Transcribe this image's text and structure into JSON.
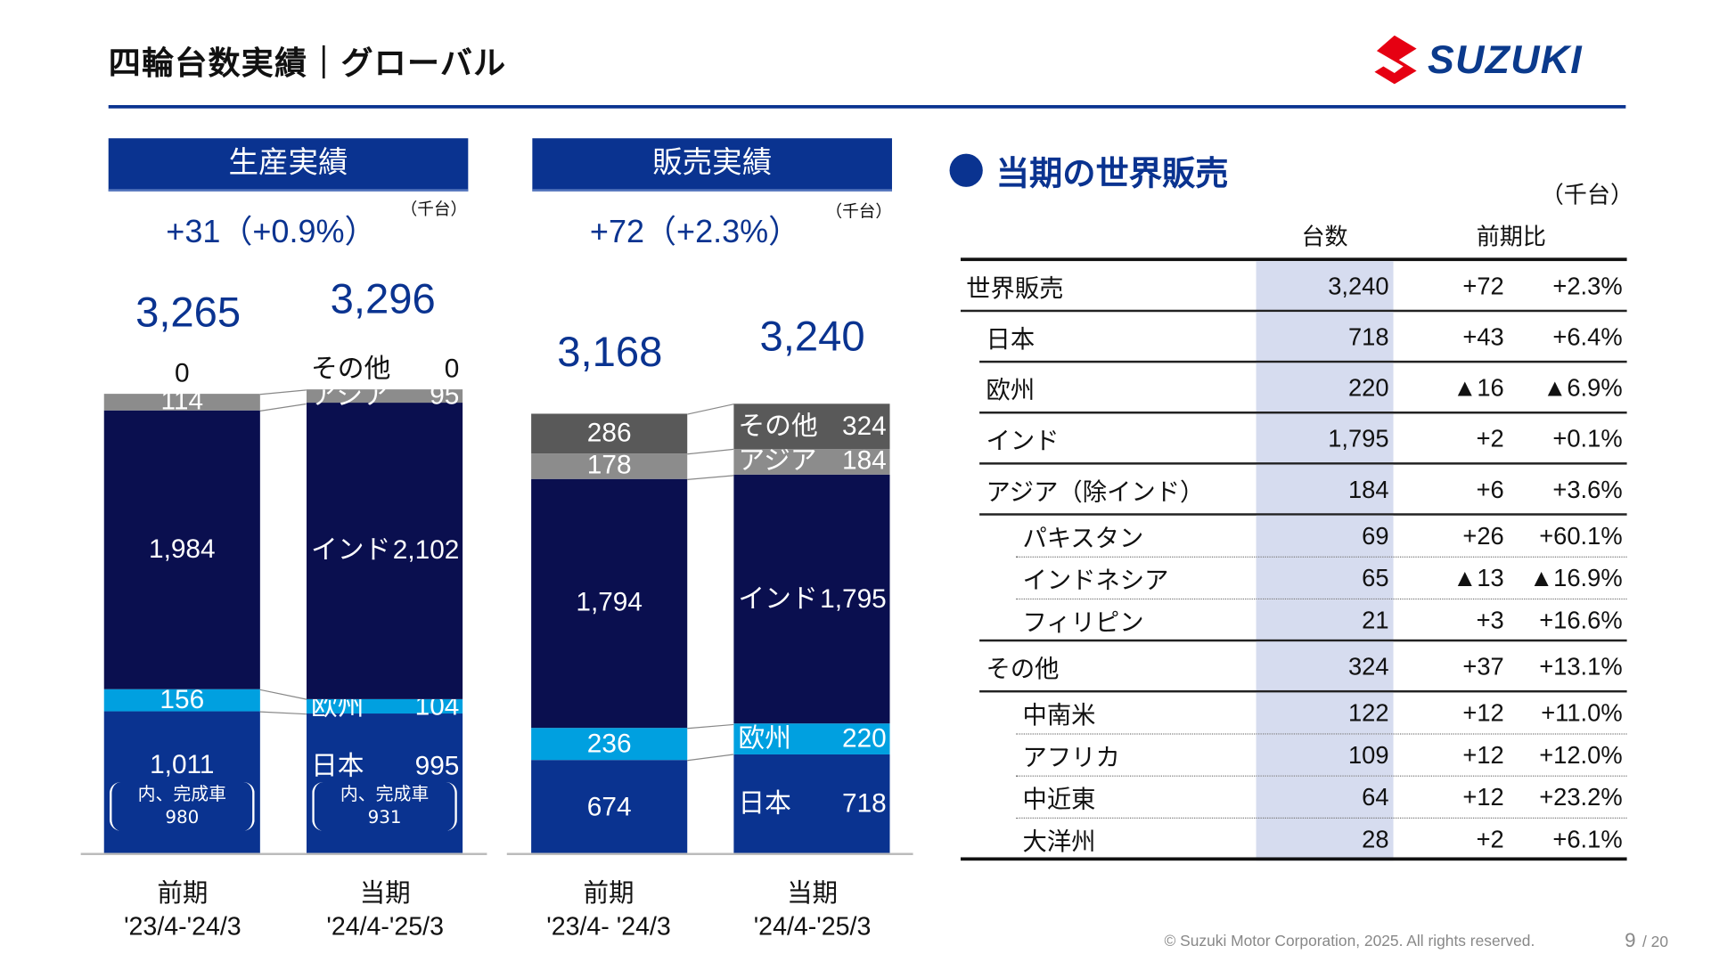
{
  "header": {
    "title": "四輪台数実績｜グローバル",
    "logo_text": "SUZUKI"
  },
  "colors": {
    "brand": "#0a3390",
    "japan": "#0a3390",
    "europe": "#00a0e0",
    "india": "#0a0f4f",
    "asia": "#8c8c8c",
    "other": "#595959",
    "logo_red": "#e60012"
  },
  "chart_data": [
    {
      "type": "bar",
      "stacked": true,
      "title": "生産実績",
      "delta": "+31（+0.9%）",
      "unit": "（千台）",
      "categories": [
        "前期",
        "当期"
      ],
      "category_sub": [
        "'23/4-'24/3",
        "'24/4-'25/3"
      ],
      "totals": [
        "3,265",
        "3,296"
      ],
      "series": [
        {
          "name": "日本",
          "values": [
            1011,
            995
          ],
          "color": "#0a3390"
        },
        {
          "name": "欧州",
          "values": [
            156,
            104
          ],
          "color": "#00a0e0"
        },
        {
          "name": "インド",
          "values": [
            1984,
            2102
          ],
          "color": "#0a0f4f"
        },
        {
          "name": "アジア",
          "values": [
            114,
            95
          ],
          "color": "#8c8c8c"
        },
        {
          "name": "その他",
          "values": [
            0,
            0
          ],
          "color": "#595959"
        }
      ],
      "notes": [
        {
          "label": "内、完成車",
          "value": "980"
        },
        {
          "label": "内、完成車",
          "value": "931"
        }
      ]
    },
    {
      "type": "bar",
      "stacked": true,
      "title": "販売実績",
      "delta": "+72（+2.3%）",
      "unit": "（千台）",
      "categories": [
        "前期",
        "当期"
      ],
      "category_sub": [
        "'23/4- '24/3",
        "'24/4-'25/3"
      ],
      "totals": [
        "3,168",
        "3,240"
      ],
      "series": [
        {
          "name": "日本",
          "values": [
            674,
            718
          ],
          "color": "#0a3390"
        },
        {
          "name": "欧州",
          "values": [
            236,
            220
          ],
          "color": "#00a0e0"
        },
        {
          "name": "インド",
          "values": [
            1794,
            1795
          ],
          "color": "#0a0f4f"
        },
        {
          "name": "アジア",
          "values": [
            178,
            184
          ],
          "color": "#8c8c8c"
        },
        {
          "name": "その他",
          "values": [
            286,
            324
          ],
          "color": "#595959"
        }
      ]
    }
  ],
  "table": {
    "title": "当期の世界販売",
    "unit": "（千台）",
    "col_count": "台数",
    "col_yoy": "前期比",
    "rows": [
      {
        "name": "世界販売",
        "count": "3,240",
        "diff": "+72",
        "pct": "+2.3%",
        "level": 0
      },
      {
        "name": "日本",
        "count": "718",
        "diff": "+43",
        "pct": "+6.4%",
        "level": 1
      },
      {
        "name": "欧州",
        "count": "220",
        "diff": "▲16",
        "pct": "▲6.9%",
        "level": 1
      },
      {
        "name": "インド",
        "count": "1,795",
        "diff": "+2",
        "pct": "+0.1%",
        "level": 1
      },
      {
        "name": "アジア（除インド）",
        "count": "184",
        "diff": "+6",
        "pct": "+3.6%",
        "level": 1
      },
      {
        "name": "パキスタン",
        "count": "69",
        "diff": "+26",
        "pct": "+60.1%",
        "level": 2
      },
      {
        "name": "インドネシア",
        "count": "65",
        "diff": "▲13",
        "pct": "▲16.9%",
        "level": 2
      },
      {
        "name": "フィリピン",
        "count": "21",
        "diff": "+3",
        "pct": "+16.6%",
        "level": 2
      },
      {
        "name": "その他",
        "count": "324",
        "diff": "+37",
        "pct": "+13.1%",
        "level": 1
      },
      {
        "name": "中南米",
        "count": "122",
        "diff": "+12",
        "pct": "+11.0%",
        "level": 2
      },
      {
        "name": "アフリカ",
        "count": "109",
        "diff": "+12",
        "pct": "+12.0%",
        "level": 2
      },
      {
        "name": "中近東",
        "count": "64",
        "diff": "+12",
        "pct": "+23.2%",
        "level": 2
      },
      {
        "name": "大洋州",
        "count": "28",
        "diff": "+2",
        "pct": "+6.1%",
        "level": 2
      }
    ]
  },
  "footer": {
    "copyright": "© Suzuki Motor Corporation, 2025. All rights reserved.",
    "page": "9",
    "total_pages": "/ 20"
  }
}
